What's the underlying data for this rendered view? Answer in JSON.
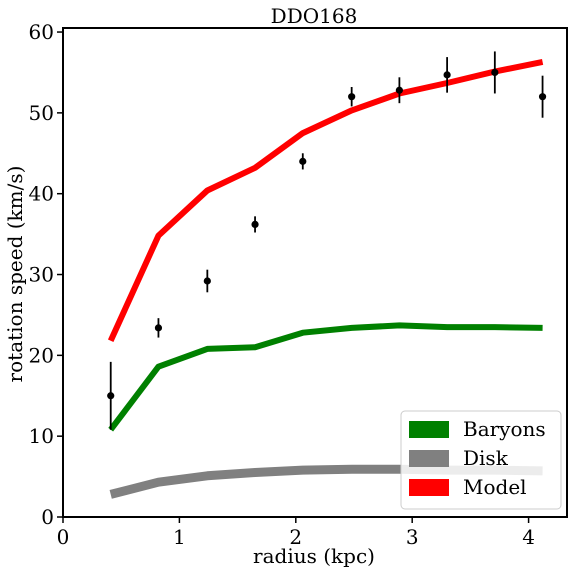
{
  "chart_data": {
    "type": "line",
    "title": "DDO168",
    "xlabel": "radius (kpc)",
    "ylabel": "rotation speed (km/s)",
    "xlim": [
      0,
      4.33
    ],
    "ylim": [
      0,
      60.5
    ],
    "xticks": [
      0,
      1,
      2,
      3,
      4
    ],
    "yticks": [
      0,
      10,
      20,
      30,
      40,
      50,
      60
    ],
    "grid": false,
    "legend_position": "lower-right",
    "series": [
      {
        "name": "Baryons",
        "color": "#008000",
        "x": [
          0.41,
          0.82,
          1.24,
          1.65,
          2.06,
          2.48,
          2.89,
          3.3,
          3.71,
          4.12
        ],
        "y": [
          10.8,
          18.6,
          20.8,
          21.0,
          22.8,
          23.4,
          23.7,
          23.5,
          23.5,
          23.4
        ]
      },
      {
        "name": "Disk",
        "color": "#808080",
        "x": [
          0.41,
          0.82,
          1.24,
          1.65,
          2.06,
          2.48,
          2.89,
          3.3,
          3.71,
          4.12
        ],
        "y": [
          2.8,
          4.3,
          5.1,
          5.5,
          5.8,
          5.9,
          5.9,
          5.8,
          5.8,
          5.7
        ]
      },
      {
        "name": "Model",
        "color": "#ff0000",
        "x": [
          0.41,
          0.82,
          1.24,
          1.65,
          2.06,
          2.48,
          2.89,
          3.3,
          3.71,
          4.12
        ],
        "y": [
          21.8,
          34.8,
          40.4,
          43.2,
          47.5,
          50.3,
          52.4,
          53.7,
          55.1,
          56.3
        ]
      }
    ],
    "observed": {
      "color": "#000000",
      "x": [
        0.41,
        0.82,
        1.24,
        1.65,
        2.06,
        2.48,
        2.89,
        3.3,
        3.71,
        4.12
      ],
      "y": [
        15.0,
        23.4,
        29.2,
        36.2,
        44.0,
        52.0,
        52.8,
        54.7,
        55.0,
        52.0
      ],
      "err": [
        4.2,
        1.2,
        1.4,
        1.0,
        1.0,
        1.2,
        1.6,
        2.2,
        2.6,
        2.6
      ]
    }
  }
}
